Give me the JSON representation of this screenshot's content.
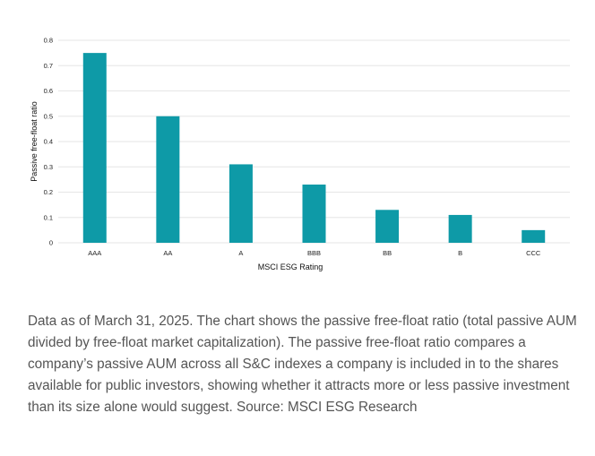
{
  "chart_data": {
    "type": "bar",
    "title": "",
    "xlabel": "MSCI ESG Rating",
    "ylabel": "Passive free-float ratio",
    "categories": [
      "AAA",
      "AA",
      "A",
      "BBB",
      "BB",
      "B",
      "CCC"
    ],
    "values": [
      0.75,
      0.5,
      0.31,
      0.23,
      0.13,
      0.11,
      0.05
    ],
    "ylim": [
      0,
      0.8
    ],
    "yticks": [
      0,
      0.1,
      0.2,
      0.3,
      0.4,
      0.5,
      0.6,
      0.7,
      0.8
    ],
    "ytick_labels": [
      "0",
      "0.1",
      "0.2",
      "0.3",
      "0.4",
      "0.5",
      "0.6",
      "0.7",
      "0.8"
    ],
    "grid": true,
    "bar_color": "#0e9aa7",
    "grid_color": "#e6e6e6"
  },
  "caption": "Data as of March 31, 2025. The chart shows the passive free-float ratio (total passive AUM divided by free-float market capitalization). The passive free-float ratio compares a company’s passive AUM across all S&C indexes a company is included in to the shares available for public investors, showing whether it attracts more or less passive investment than its size alone would suggest. Source: MSCI ESG Research"
}
